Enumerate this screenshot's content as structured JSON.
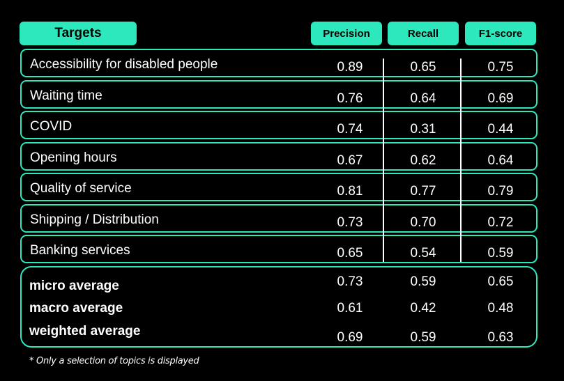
{
  "chart_data": {
    "type": "table",
    "header": {
      "targets_label": "Targets",
      "metrics": [
        "Precision",
        "Recall",
        "F1-score"
      ]
    },
    "rows": [
      {
        "label": "Accessibility for disabled people",
        "values": [
          "0.89",
          "0.65",
          "0.75"
        ]
      },
      {
        "label": "Waiting time",
        "values": [
          "0.76",
          "0.64",
          "0.69"
        ]
      },
      {
        "label": "COVID",
        "values": [
          "0.74",
          "0.31",
          "0.44"
        ]
      },
      {
        "label": "Opening hours",
        "values": [
          "0.67",
          "0.62",
          "0.64"
        ]
      },
      {
        "label": "Quality of service",
        "values": [
          "0.81",
          "0.77",
          "0.79"
        ]
      },
      {
        "label": "Shipping / Distribution",
        "values": [
          "0.73",
          "0.70",
          "0.72"
        ]
      },
      {
        "label": "Banking services",
        "values": [
          "0.65",
          "0.54",
          "0.59"
        ]
      }
    ],
    "averages": [
      {
        "label": "micro average",
        "values": [
          "0.73",
          "0.59",
          "0.65"
        ]
      },
      {
        "label": "macro average",
        "values": [
          "0.61",
          "0.42",
          "0.48"
        ]
      },
      {
        "label": "weighted average",
        "values": [
          "0.69",
          "0.59",
          "0.63"
        ]
      }
    ],
    "footnote": "* Only a selection of topics is displayed"
  },
  "colors": {
    "accent": "#2ee8bd",
    "background": "#000000",
    "text": "#ffffff"
  }
}
